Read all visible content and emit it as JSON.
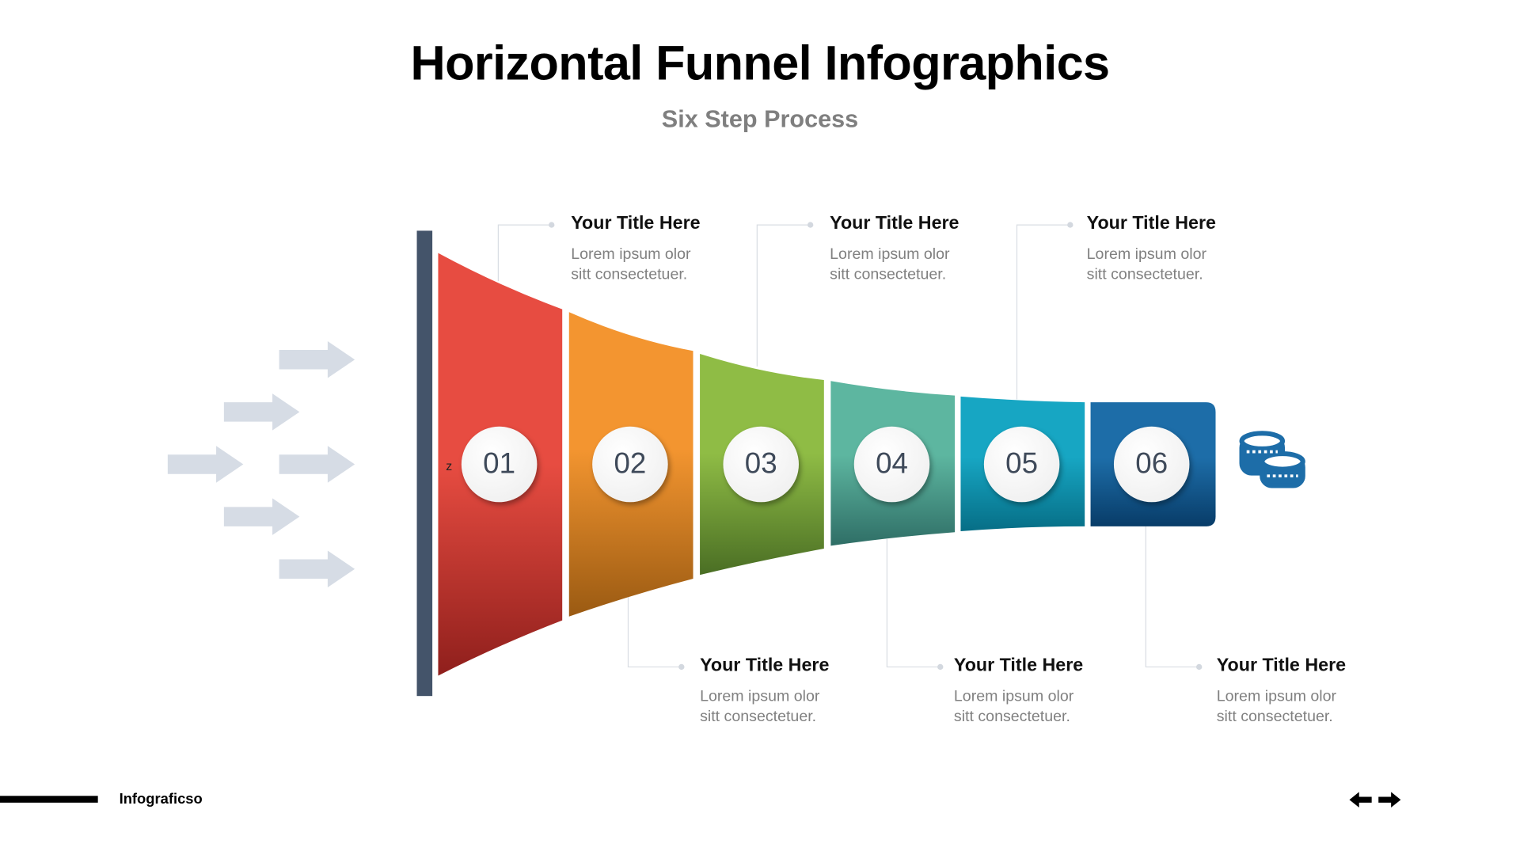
{
  "title": "Horizontal Funnel Infographics",
  "subtitle": "Six Step Process",
  "steps": [
    {
      "number": "01",
      "color": "#e74c41",
      "title": "Your Title Here",
      "desc1": "Lorem ipsum olor",
      "desc2": "sitt consectetuer."
    },
    {
      "number": "02",
      "color": "#f39530",
      "title": "Your Title Here",
      "desc1": "Lorem ipsum olor",
      "desc2": "sitt consectetuer."
    },
    {
      "number": "03",
      "color": "#8fbc45",
      "title": "Your Title Here",
      "desc1": "Lorem ipsum olor",
      "desc2": "sitt consectetuer."
    },
    {
      "number": "04",
      "color": "#5db6a0",
      "title": "Your Title Here",
      "desc1": "Lorem ipsum olor",
      "desc2": "sitt consectetuer."
    },
    {
      "number": "05",
      "color": "#17a6c3",
      "title": "Your Title Here",
      "desc1": "Lorem ipsum olor",
      "desc2": "sitt consectetuer."
    },
    {
      "number": "06",
      "color": "#1d6da8",
      "title": "Your Title Here",
      "desc1": "Lorem ipsum olor",
      "desc2": "sitt consectetuer."
    }
  ],
  "stray_letter": "z",
  "icons": {
    "input": "arrow-right-icon",
    "output": "coins-icon",
    "nav": "prev-next-arrows-icon"
  },
  "footer": {
    "brand": "Infograficso"
  }
}
